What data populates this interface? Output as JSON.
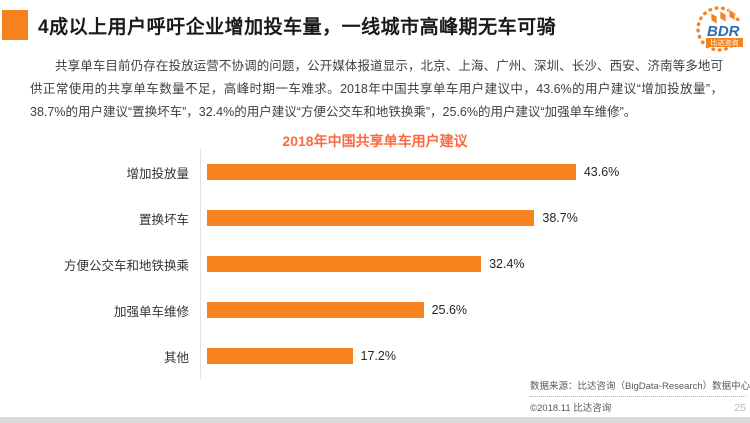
{
  "page": {
    "title": "4成以上用户呼吁企业增加投车量，一线城市高峰期无车可骑",
    "paragraph": "共享单车目前仍存在投放运营不协调的问题，公开媒体报道显示，北京、上海、广州、深圳、长沙、西安、济南等多地可供正常使用的共享单车数量不足，高峰时期一车难求。2018年中国共享单车用户建议中，43.6%的用户建议“增加投放量”，38.7%的用户建议“置换坏车”，32.4%的用户建议“方便公交车和地铁换乘”，25.6%的用户建议“加强单车维修”。"
  },
  "logo": {
    "text": "BDR",
    "subtext": "比达咨询"
  },
  "colors": {
    "accent_orange": "#f5821f",
    "bar_orange": "#f7831e",
    "chart_title_orange": "#fb6a3f"
  },
  "chart_data": {
    "type": "bar",
    "orientation": "horizontal",
    "title": "2018年中国共享单车用户建议",
    "categories": [
      "增加投放量",
      "置换坏车",
      "方便公交车和地铁换乘",
      "加强单车维修",
      "其他"
    ],
    "values": [
      43.6,
      38.7,
      32.4,
      25.6,
      17.2
    ],
    "value_labels": [
      "43.6%",
      "38.7%",
      "32.4%",
      "25.6%",
      "17.2%"
    ],
    "unit": "%",
    "xlim": [
      0,
      50
    ],
    "grid": false,
    "legend": false
  },
  "footer": {
    "source": "数据来源：比达咨询（BigData-Research）数据中心",
    "copyright": "©2018.11 比达咨询",
    "page_number": "25"
  }
}
